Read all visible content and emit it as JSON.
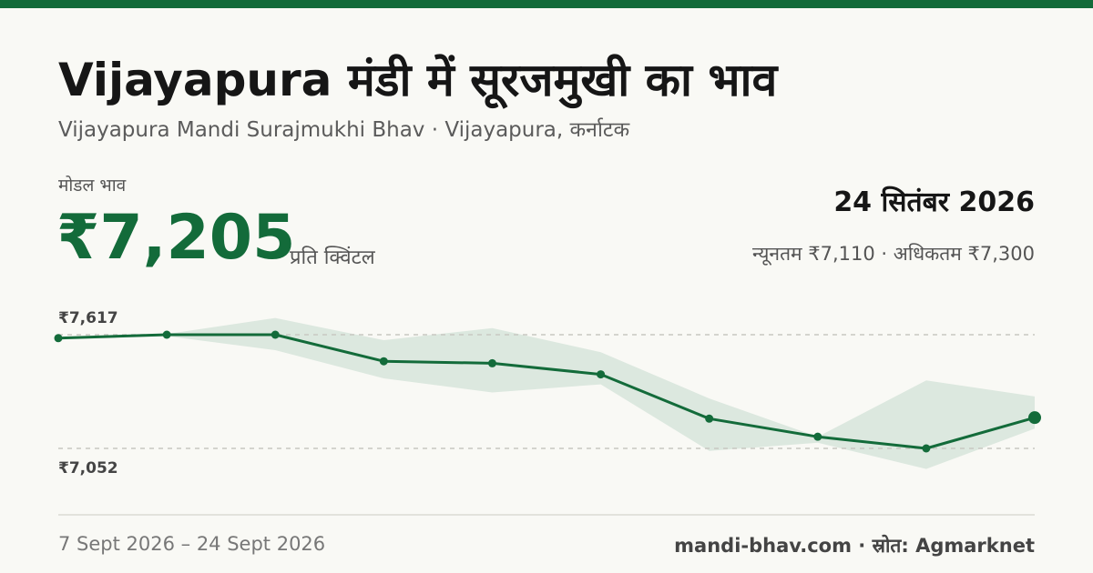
{
  "header": {
    "title": "Vijayapura मंडी में सूरजमुखी का भाव",
    "subtitle": "Vijayapura Mandi Surajmukhi Bhav · Vijayapura, कर्नाटक"
  },
  "price": {
    "label": "मोडल भाव",
    "value": "₹7,205",
    "unit": "प्रति क्विंटल"
  },
  "date": "24 सितंबर 2026",
  "minmax": "न्यूनतम ₹7,110 · अधिकतम ₹7,300",
  "footer": {
    "range": "7 Sept 2026 – 24 Sept 2026",
    "source": "mandi-bhav.com · स्रोत: Agmarknet"
  },
  "colors": {
    "accent": "#136b3a",
    "band": "#dce8df",
    "gridline": "#c8c8c2"
  },
  "chart_data": {
    "type": "line",
    "y_labels": {
      "max": "₹7,617",
      "min": "₹7,052"
    },
    "y_reference": {
      "max": 7617,
      "min": 7052
    },
    "x_range": [
      "7 Sept 2026",
      "24 Sept 2026"
    ],
    "series": [
      {
        "values": [
          7600,
          7617,
          7617,
          7485,
          7475,
          7420,
          7200,
          7110,
          7052,
          7205
        ]
      }
    ],
    "band": {
      "lower": [
        7600,
        7610,
        7540,
        7400,
        7330,
        7370,
        7040,
        7080,
        6950,
        7150
      ],
      "upper": [
        7600,
        7620,
        7700,
        7590,
        7650,
        7530,
        7300,
        7110,
        7390,
        7310
      ]
    },
    "grid": "dashed reference lines at max and min",
    "legend": "none"
  }
}
